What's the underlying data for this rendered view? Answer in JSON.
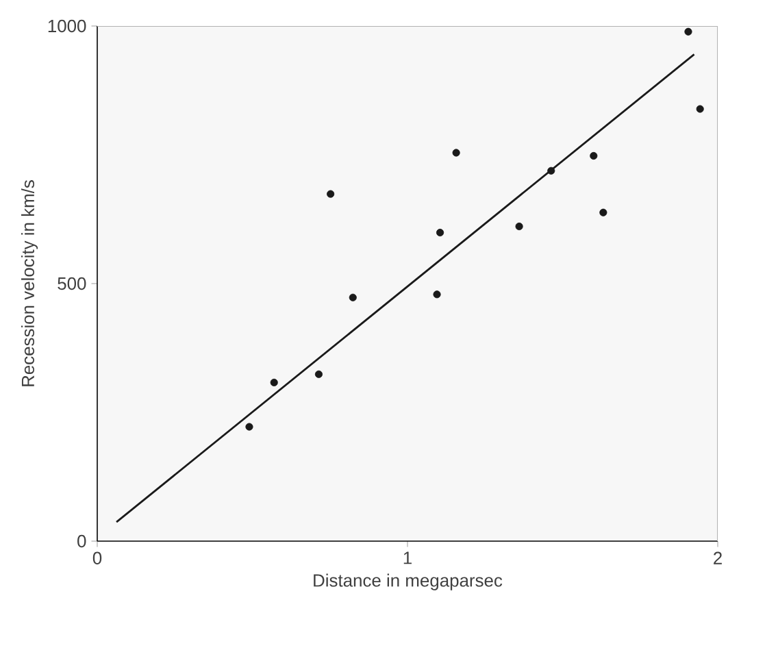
{
  "chart_data": {
    "type": "scatter",
    "xlabel": "Distance in megaparsec",
    "ylabel": "Recession velocity in km/s",
    "xlim": [
      0,
      2
    ],
    "ylim": [
      0,
      1000
    ],
    "xticks": [
      0,
      1,
      2
    ],
    "yticks": [
      0,
      500,
      1000
    ],
    "series": [
      {
        "type": "scatter",
        "color": "#1a1a1a",
        "marker": "circle",
        "x": [
          0.49,
          0.57,
          0.714,
          0.752,
          0.824,
          1.095,
          1.105,
          1.157,
          1.36,
          1.463,
          1.6,
          1.631,
          1.905,
          1.943
        ],
        "values": [
          222,
          308,
          324,
          674,
          473,
          479,
          599,
          754,
          611,
          719,
          748,
          638,
          989,
          839
        ]
      },
      {
        "type": "line",
        "color": "#1a1a1a",
        "x": [
          0.062,
          1.924
        ],
        "values": [
          37,
          945
        ]
      }
    ]
  }
}
